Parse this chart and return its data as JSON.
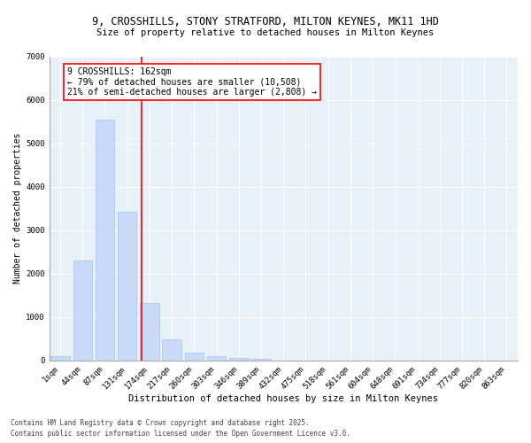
{
  "title1": "9, CROSSHILLS, STONY STRATFORD, MILTON KEYNES, MK11 1HD",
  "title2": "Size of property relative to detached houses in Milton Keynes",
  "xlabel": "Distribution of detached houses by size in Milton Keynes",
  "ylabel": "Number of detached properties",
  "categories": [
    "1sqm",
    "44sqm",
    "87sqm",
    "131sqm",
    "174sqm",
    "217sqm",
    "260sqm",
    "303sqm",
    "346sqm",
    "389sqm",
    "432sqm",
    "475sqm",
    "518sqm",
    "561sqm",
    "604sqm",
    "648sqm",
    "691sqm",
    "734sqm",
    "777sqm",
    "820sqm",
    "863sqm"
  ],
  "values": [
    100,
    2300,
    5550,
    3420,
    1330,
    490,
    185,
    100,
    60,
    30,
    0,
    0,
    0,
    0,
    0,
    0,
    0,
    0,
    0,
    0,
    0
  ],
  "bar_color": "#c9daf8",
  "bar_edge_color": "#a4c2f4",
  "vline_x_idx": 3.65,
  "vline_color": "red",
  "annotation_text": "9 CROSSHILLS: 162sqm\n← 79% of detached houses are smaller (10,508)\n21% of semi-detached houses are larger (2,808) →",
  "annotation_box_color": "white",
  "annotation_box_edge_color": "red",
  "ylim": [
    0,
    7000
  ],
  "yticks": [
    0,
    1000,
    2000,
    3000,
    4000,
    5000,
    6000,
    7000
  ],
  "background_color": "#e8f0f8",
  "grid_color": "white",
  "footer1": "Contains HM Land Registry data © Crown copyright and database right 2025.",
  "footer2": "Contains public sector information licensed under the Open Government Licence v3.0.",
  "title_fontsize": 8.5,
  "subtitle_fontsize": 7.5,
  "xlabel_fontsize": 7.5,
  "ylabel_fontsize": 7,
  "tick_fontsize": 6.5,
  "annotation_fontsize": 7,
  "footer_fontsize": 5.5
}
